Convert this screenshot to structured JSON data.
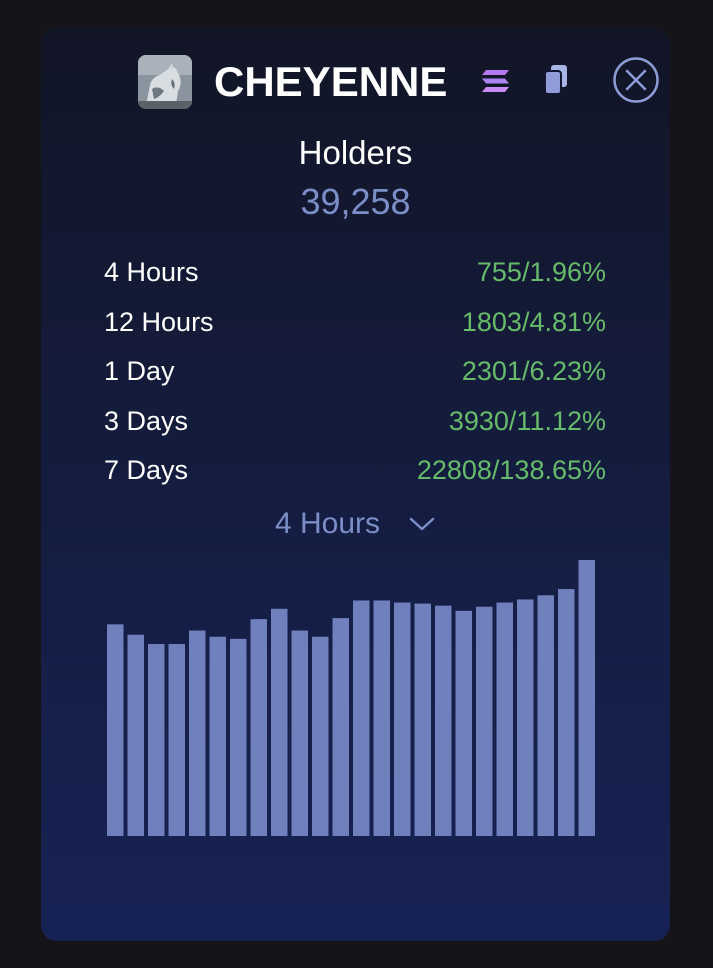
{
  "token": {
    "name": "CHEYENNE",
    "avatar_icon": "horse-avatar-icon",
    "chain_icon": "solana-icon",
    "copy_icon": "copy-icon",
    "close_icon": "close-circle-icon"
  },
  "holders": {
    "title": "Holders",
    "count": "39,258"
  },
  "stats": [
    {
      "label": "4 Hours",
      "value": "755/1.96%"
    },
    {
      "label": "12 Hours",
      "value": "1803/4.81%"
    },
    {
      "label": "1 Day",
      "value": "2301/6.23%"
    },
    {
      "label": "3 Days",
      "value": "3930/11.12%"
    },
    {
      "label": "7 Days",
      "value": "22808/138.65%"
    }
  ],
  "period_select": {
    "selected": "4 Hours"
  },
  "colors": {
    "accent": "#7b8ec8",
    "positive": "#66bb6a",
    "bar": "#7080bd"
  },
  "chart_data": {
    "type": "bar",
    "values": [
      204,
      194,
      185,
      185,
      198,
      192,
      190,
      209,
      219,
      198,
      192,
      210,
      227,
      227,
      225,
      224,
      222,
      217,
      221,
      225,
      228,
      232,
      238,
      266
    ],
    "ylim": [
      0,
      266
    ],
    "grid": false,
    "legend": "none"
  }
}
